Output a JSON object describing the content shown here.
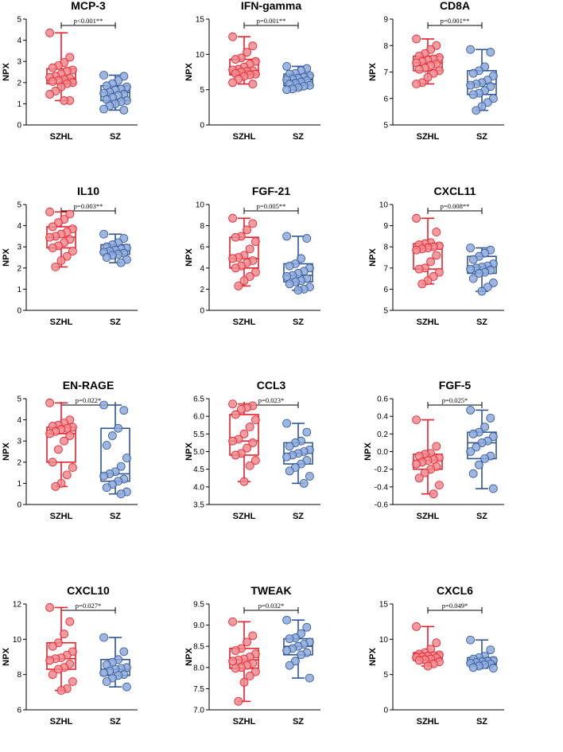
{
  "chart_data": [
    {
      "type": "box",
      "title": "MCP-3",
      "ylabel": "NPX",
      "ylim": [
        0,
        5
      ],
      "ticks": [
        0,
        1,
        2,
        3,
        4,
        5
      ],
      "pvalue": "p<0.001**",
      "categories": [
        "SZHL",
        "SZ"
      ],
      "series": [
        {
          "name": "SZHL",
          "color": "#e8202a",
          "fill": "#f08a8f",
          "min": 1.15,
          "q1": 1.95,
          "median": 2.2,
          "q3": 2.65,
          "max": 4.35,
          "points": [
            4.35,
            3.2,
            2.95,
            2.8,
            2.7,
            2.6,
            2.55,
            2.4,
            2.3,
            2.25,
            2.2,
            2.15,
            2.1,
            2.05,
            2.0,
            1.95,
            1.8,
            1.6,
            1.45,
            1.15,
            1.15
          ]
        },
        {
          "name": "SZ",
          "color": "#2f5597",
          "fill": "#8eaadb",
          "min": 0.7,
          "q1": 1.15,
          "median": 1.55,
          "q3": 1.85,
          "max": 2.35,
          "points": [
            2.35,
            2.3,
            2.1,
            1.95,
            1.85,
            1.8,
            1.7,
            1.65,
            1.55,
            1.5,
            1.45,
            1.4,
            1.3,
            1.2,
            1.15,
            1.1,
            1.0,
            0.9,
            0.75,
            0.7
          ]
        }
      ]
    },
    {
      "type": "box",
      "title": "IFN-gamma",
      "ylabel": "NPX",
      "ylim": [
        0,
        15
      ],
      "ticks": [
        0,
        5,
        10,
        15
      ],
      "pvalue": "p=0.001**",
      "categories": [
        "SZHL",
        "SZ"
      ],
      "series": [
        {
          "name": "SZHL",
          "color": "#e8202a",
          "fill": "#f08a8f",
          "min": 5.8,
          "q1": 7.1,
          "median": 7.7,
          "q3": 9.3,
          "max": 12.5,
          "points": [
            12.5,
            11.2,
            10.3,
            9.5,
            9.3,
            9.0,
            8.6,
            8.2,
            7.9,
            7.8,
            7.7,
            7.6,
            7.5,
            7.3,
            7.2,
            7.1,
            6.9,
            6.5,
            6.0,
            5.8
          ]
        },
        {
          "name": "SZ",
          "color": "#2f5597",
          "fill": "#8eaadb",
          "min": 5.0,
          "q1": 5.6,
          "median": 6.4,
          "q3": 7.2,
          "max": 8.3,
          "points": [
            8.3,
            8.0,
            7.7,
            7.3,
            7.2,
            7.0,
            6.8,
            6.6,
            6.5,
            6.4,
            6.3,
            6.1,
            5.9,
            5.8,
            5.6,
            5.5,
            5.3,
            5.1,
            5.0
          ]
        }
      ]
    },
    {
      "type": "box",
      "title": "CD8A",
      "ylabel": "NPX",
      "ylim": [
        5,
        9
      ],
      "ticks": [
        5,
        6,
        7,
        8,
        9
      ],
      "pvalue": "p=0.001**",
      "categories": [
        "SZHL",
        "SZ"
      ],
      "series": [
        {
          "name": "SZHL",
          "color": "#e8202a",
          "fill": "#f08a8f",
          "min": 6.55,
          "q1": 7.05,
          "median": 7.35,
          "q3": 7.6,
          "max": 8.25,
          "points": [
            8.25,
            8.0,
            7.85,
            7.7,
            7.6,
            7.55,
            7.5,
            7.45,
            7.4,
            7.35,
            7.3,
            7.25,
            7.15,
            7.1,
            7.05,
            6.95,
            6.8,
            6.6,
            6.55
          ]
        },
        {
          "name": "SZ",
          "color": "#2f5597",
          "fill": "#8eaadb",
          "min": 5.55,
          "q1": 6.15,
          "median": 6.55,
          "q3": 7.05,
          "max": 7.85,
          "points": [
            7.85,
            7.75,
            7.2,
            7.05,
            6.95,
            6.85,
            6.7,
            6.6,
            6.55,
            6.5,
            6.45,
            6.3,
            6.2,
            6.15,
            6.0,
            5.85,
            5.7,
            5.55
          ]
        }
      ]
    },
    {
      "type": "box",
      "title": "IL10",
      "ylabel": "NPX",
      "ylim": [
        0,
        5
      ],
      "ticks": [
        0,
        1,
        2,
        3,
        4,
        5
      ],
      "pvalue": "p=0.003**",
      "categories": [
        "SZHL",
        "SZ"
      ],
      "series": [
        {
          "name": "SZHL",
          "color": "#e8202a",
          "fill": "#f08a8f",
          "min": 2.05,
          "q1": 2.95,
          "median": 3.45,
          "q3": 3.95,
          "max": 4.65,
          "points": [
            4.65,
            4.55,
            4.3,
            4.15,
            3.95,
            3.85,
            3.7,
            3.6,
            3.5,
            3.45,
            3.35,
            3.2,
            3.05,
            2.95,
            2.8,
            2.55,
            2.35,
            2.05
          ]
        },
        {
          "name": "SZ",
          "color": "#2f5597",
          "fill": "#8eaadb",
          "min": 2.25,
          "q1": 2.65,
          "median": 2.85,
          "q3": 3.1,
          "max": 3.6,
          "points": [
            3.6,
            3.4,
            3.2,
            3.1,
            3.0,
            2.95,
            2.9,
            2.85,
            2.8,
            2.75,
            2.7,
            2.65,
            2.6,
            2.5,
            2.4,
            2.25
          ]
        }
      ]
    },
    {
      "type": "box",
      "title": "FGF-21",
      "ylabel": "NPX",
      "ylim": [
        0,
        10
      ],
      "ticks": [
        0,
        2,
        4,
        6,
        8,
        10
      ],
      "pvalue": "p=0.005**",
      "categories": [
        "SZHL",
        "SZ"
      ],
      "series": [
        {
          "name": "SZHL",
          "color": "#e8202a",
          "fill": "#f08a8f",
          "min": 2.3,
          "q1": 4.0,
          "median": 4.9,
          "q3": 6.9,
          "max": 8.7,
          "points": [
            8.7,
            8.2,
            7.6,
            7.0,
            6.9,
            6.5,
            5.8,
            5.2,
            5.0,
            4.9,
            4.7,
            4.5,
            4.2,
            4.0,
            3.6,
            3.2,
            2.8,
            2.3
          ]
        },
        {
          "name": "SZ",
          "color": "#2f5597",
          "fill": "#8eaadb",
          "min": 1.9,
          "q1": 2.7,
          "median": 3.3,
          "q3": 4.4,
          "max": 7.0,
          "points": [
            7.0,
            6.8,
            4.9,
            4.4,
            4.2,
            4.0,
            3.7,
            3.5,
            3.3,
            3.2,
            3.0,
            2.8,
            2.7,
            2.5,
            2.2,
            2.0,
            1.9
          ]
        }
      ]
    },
    {
      "type": "box",
      "title": "CXCL11",
      "ylabel": "NPX",
      "ylim": [
        5,
        10
      ],
      "ticks": [
        5,
        6,
        7,
        8,
        9,
        10
      ],
      "pvalue": "p=0.008**",
      "categories": [
        "SZHL",
        "SZ"
      ],
      "series": [
        {
          "name": "SZHL",
          "color": "#e8202a",
          "fill": "#f08a8f",
          "min": 6.25,
          "q1": 6.95,
          "median": 7.9,
          "q3": 8.15,
          "max": 9.35,
          "points": [
            9.35,
            8.7,
            8.2,
            8.15,
            8.1,
            8.05,
            8.0,
            7.95,
            7.9,
            7.85,
            7.6,
            7.3,
            7.0,
            6.95,
            6.8,
            6.6,
            6.4,
            6.25
          ]
        },
        {
          "name": "SZ",
          "color": "#2f5597",
          "fill": "#8eaadb",
          "min": 5.9,
          "q1": 6.75,
          "median": 7.05,
          "q3": 7.55,
          "max": 7.95,
          "points": [
            7.95,
            7.85,
            7.7,
            7.55,
            7.4,
            7.2,
            7.1,
            7.05,
            7.0,
            6.95,
            6.9,
            6.8,
            6.75,
            6.5,
            6.3,
            6.1,
            5.9
          ]
        }
      ]
    },
    {
      "type": "box",
      "title": "EN-RAGE",
      "ylabel": "NPX",
      "ylim": [
        0,
        5
      ],
      "ticks": [
        0,
        1,
        2,
        3,
        4,
        5
      ],
      "pvalue": "p=0.022*",
      "categories": [
        "SZHL",
        "SZ"
      ],
      "series": [
        {
          "name": "SZHL",
          "color": "#e8202a",
          "fill": "#f08a8f",
          "min": 0.85,
          "q1": 2.0,
          "median": 3.35,
          "q3": 3.65,
          "max": 4.8,
          "points": [
            4.8,
            4.0,
            3.85,
            3.75,
            3.7,
            3.65,
            3.6,
            3.55,
            3.45,
            3.35,
            3.25,
            3.0,
            2.6,
            2.0,
            1.75,
            1.4,
            1.0,
            0.85
          ]
        },
        {
          "name": "SZ",
          "color": "#2f5597",
          "fill": "#8eaadb",
          "min": 0.5,
          "q1": 1.1,
          "median": 1.45,
          "q3": 3.6,
          "max": 4.7,
          "points": [
            4.7,
            4.45,
            3.6,
            3.25,
            2.8,
            2.2,
            1.8,
            1.55,
            1.45,
            1.35,
            1.2,
            1.1,
            0.95,
            0.8,
            0.6,
            0.5
          ]
        }
      ]
    },
    {
      "type": "box",
      "title": "CCL3",
      "ylabel": "NPX",
      "ylim": [
        3.5,
        6.5
      ],
      "ticks": [
        3.5,
        4.0,
        4.5,
        5.0,
        5.5,
        6.0,
        6.5
      ],
      "pvalue": "p=0.023*",
      "categories": [
        "SZHL",
        "SZ"
      ],
      "series": [
        {
          "name": "SZHL",
          "color": "#e8202a",
          "fill": "#f08a8f",
          "min": 4.15,
          "q1": 4.9,
          "median": 5.3,
          "q3": 6.05,
          "max": 6.35,
          "points": [
            6.35,
            6.3,
            6.25,
            6.2,
            6.05,
            5.9,
            5.7,
            5.5,
            5.35,
            5.3,
            5.25,
            5.1,
            4.95,
            4.9,
            4.75,
            4.6,
            4.15
          ]
        },
        {
          "name": "SZ",
          "color": "#2f5597",
          "fill": "#8eaadb",
          "min": 4.1,
          "q1": 4.65,
          "median": 4.95,
          "q3": 5.25,
          "max": 5.8,
          "points": [
            5.8,
            5.55,
            5.3,
            5.25,
            5.15,
            5.05,
            5.0,
            4.95,
            4.9,
            4.85,
            4.75,
            4.65,
            4.55,
            4.45,
            4.3,
            4.1
          ]
        }
      ]
    },
    {
      "type": "box",
      "title": "FGF-5",
      "ylabel": "NPX",
      "ylim": [
        -0.6,
        0.6
      ],
      "ticks": [
        -0.6,
        -0.4,
        -0.2,
        0.0,
        0.2,
        0.4,
        0.6
      ],
      "pvalue": "p=0.025*",
      "categories": [
        "SZHL",
        "SZ"
      ],
      "series": [
        {
          "name": "SZHL",
          "color": "#e8202a",
          "fill": "#f08a8f",
          "min": -0.48,
          "q1": -0.2,
          "median": -0.1,
          "q3": -0.03,
          "max": 0.36,
          "points": [
            0.36,
            0.06,
            -0.02,
            -0.03,
            -0.05,
            -0.07,
            -0.09,
            -0.1,
            -0.12,
            -0.14,
            -0.17,
            -0.2,
            -0.24,
            -0.3,
            -0.38,
            -0.48
          ]
        },
        {
          "name": "SZ",
          "color": "#2f5597",
          "fill": "#8eaadb",
          "min": -0.42,
          "q1": -0.08,
          "median": 0.1,
          "q3": 0.22,
          "max": 0.47,
          "points": [
            0.47,
            0.38,
            0.28,
            0.22,
            0.2,
            0.17,
            0.12,
            0.1,
            0.05,
            0.0,
            -0.05,
            -0.08,
            -0.15,
            -0.25,
            -0.42
          ]
        }
      ]
    },
    {
      "type": "box",
      "title": "CXCL10",
      "ylabel": "NPX",
      "ylim": [
        6,
        12
      ],
      "ticks": [
        6,
        8,
        10,
        12
      ],
      "pvalue": "p=0.027*",
      "categories": [
        "SZHL",
        "SZ"
      ],
      "series": [
        {
          "name": "SZHL",
          "color": "#e8202a",
          "fill": "#f08a8f",
          "min": 7.1,
          "q1": 8.3,
          "median": 8.9,
          "q3": 9.8,
          "max": 11.8,
          "points": [
            11.8,
            11.0,
            10.3,
            9.8,
            9.6,
            9.3,
            9.1,
            8.95,
            8.9,
            8.8,
            8.6,
            8.4,
            8.3,
            8.0,
            7.6,
            7.2,
            7.1
          ]
        },
        {
          "name": "SZ",
          "color": "#2f5597",
          "fill": "#8eaadb",
          "min": 7.3,
          "q1": 7.95,
          "median": 8.3,
          "q3": 8.85,
          "max": 10.1,
          "points": [
            10.1,
            9.3,
            8.85,
            8.7,
            8.55,
            8.4,
            8.35,
            8.3,
            8.2,
            8.1,
            8.0,
            7.95,
            7.8,
            7.6,
            7.3
          ]
        }
      ]
    },
    {
      "type": "box",
      "title": "TWEAK",
      "ylabel": "NPX",
      "ylim": [
        7.0,
        9.5
      ],
      "ticks": [
        7.0,
        7.5,
        8.0,
        8.5,
        9.0,
        9.5
      ],
      "pvalue": "p=0.032*",
      "categories": [
        "SZHL",
        "SZ"
      ],
      "series": [
        {
          "name": "SZHL",
          "color": "#e8202a",
          "fill": "#f08a8f",
          "min": 7.2,
          "q1": 7.98,
          "median": 8.18,
          "q3": 8.45,
          "max": 9.08,
          "points": [
            9.08,
            8.75,
            8.6,
            8.45,
            8.4,
            8.32,
            8.25,
            8.2,
            8.18,
            8.15,
            8.1,
            8.05,
            8.0,
            7.98,
            7.9,
            7.8,
            7.65,
            7.2
          ]
        },
        {
          "name": "SZ",
          "color": "#2f5597",
          "fill": "#8eaadb",
          "min": 7.75,
          "q1": 8.3,
          "median": 8.5,
          "q3": 8.68,
          "max": 9.12,
          "points": [
            9.12,
            8.95,
            8.8,
            8.7,
            8.68,
            8.6,
            8.55,
            8.5,
            8.45,
            8.4,
            8.35,
            8.3,
            8.15,
            8.05,
            7.75
          ]
        }
      ]
    },
    {
      "type": "box",
      "title": "CXCL6",
      "ylabel": "NPX",
      "ylim": [
        0,
        15
      ],
      "ticks": [
        0,
        5,
        10,
        15
      ],
      "pvalue": "p=0.049*",
      "categories": [
        "SZHL",
        "SZ"
      ],
      "series": [
        {
          "name": "SZHL",
          "color": "#e8202a",
          "fill": "#f08a8f",
          "min": 6.2,
          "q1": 7.0,
          "median": 7.5,
          "q3": 8.1,
          "max": 11.8,
          "points": [
            11.8,
            9.5,
            8.6,
            8.1,
            7.9,
            7.8,
            7.7,
            7.6,
            7.5,
            7.45,
            7.35,
            7.2,
            7.1,
            7.0,
            6.8,
            6.5,
            6.2
          ]
        },
        {
          "name": "SZ",
          "color": "#2f5597",
          "fill": "#8eaadb",
          "min": 5.9,
          "q1": 6.4,
          "median": 6.8,
          "q3": 7.4,
          "max": 9.9,
          "points": [
            9.9,
            8.5,
            7.6,
            7.4,
            7.2,
            7.0,
            6.9,
            6.8,
            6.7,
            6.6,
            6.5,
            6.4,
            6.2,
            6.0,
            5.9
          ]
        }
      ]
    }
  ]
}
